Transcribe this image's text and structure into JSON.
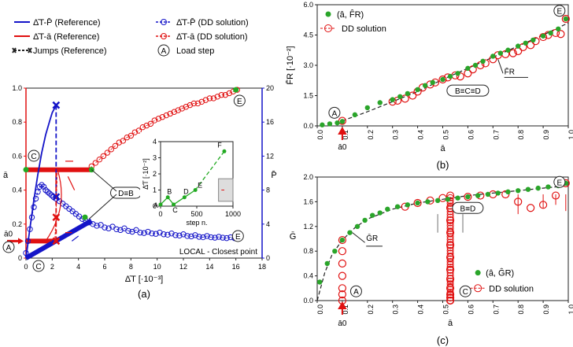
{
  "legend_a": {
    "items": [
      {
        "label": "Δ̄T-P̄ (Reference)",
        "color": "#1414c8"
      },
      {
        "label": "Δ̄T-P̄ (DD solution)",
        "color": "#1414c8"
      },
      {
        "label": "Δ̄T-ā (Reference)",
        "color": "#e01010"
      },
      {
        "label": "Δ̄T-ā (DD solution)",
        "color": "#e01010"
      },
      {
        "label": "Jumps (Reference)",
        "color": "#1414c8"
      },
      {
        "label": "Load step",
        "symbol": "A"
      }
    ]
  },
  "colors": {
    "red": "#e01010",
    "blue": "#1414c8",
    "green": "#22aa22",
    "dark_green": "#2aa52a",
    "gray": "#555555"
  },
  "chart_data": [
    {
      "id": "a",
      "type": "line",
      "panel_label": "(a)",
      "xlabel": "Δ̄T [·10⁻³]",
      "ylabel_left": "ā",
      "ylabel_right": "P̄",
      "xlim": [
        0,
        18
      ],
      "ylim_left": [
        0,
        1
      ],
      "ylim_right": [
        0,
        20
      ],
      "x_ticks": [
        "0",
        "2",
        "4",
        "6",
        "8",
        "10",
        "12",
        "14",
        "16",
        "18"
      ],
      "y_left_ticks": [
        "0",
        "0.2",
        "0.4",
        "0.6",
        "0.8",
        "1.0"
      ],
      "y_right_ticks": [
        "0",
        "4",
        "8",
        "12",
        "16",
        "20"
      ],
      "corner_text": "LOCAL - Closest point",
      "point_labels": [
        "A",
        "C",
        "C",
        "D≡B",
        "E",
        "E"
      ],
      "a0_label": "ā0",
      "series": [
        {
          "name": "Δ̄T-P̄ (Reference)",
          "axis": "right",
          "x": [
            0,
            0.3,
            0.6,
            0.9,
            1.2,
            1.5,
            1.8,
            2.0,
            2.2,
            2.3
          ],
          "y": [
            0,
            3.5,
            6.8,
            9.8,
            12.4,
            14.5,
            16.1,
            17.1,
            17.7,
            18.0
          ]
        },
        {
          "name": "Δ̄T-P̄ (DD solution)",
          "axis": "right",
          "x": [
            0,
            0.15,
            0.3,
            0.45,
            0.6,
            0.75,
            0.9,
            1.05,
            1.2,
            1.35,
            1.5,
            1.65,
            1.8,
            1.95,
            2.1,
            2.3,
            2.55,
            2.8,
            3.05,
            3.3,
            3.55,
            3.8,
            4.05,
            4.3,
            4.55,
            4.8,
            5.1,
            5.4,
            5.7,
            6.0,
            6.3,
            6.6,
            6.9,
            7.2,
            7.5,
            7.8,
            8.1,
            8.4,
            8.7,
            9.0,
            9.3,
            9.6,
            9.9,
            10.2,
            10.5,
            10.8,
            11.1,
            11.4,
            11.7,
            12.0,
            12.3,
            12.6,
            12.9,
            13.2,
            13.5,
            13.8,
            14.1,
            14.4,
            14.7,
            15.0,
            15.3,
            15.6,
            15.9,
            16.2
          ],
          "y": [
            0.6,
            2.0,
            3.4,
            4.8,
            6.0,
            7.0,
            7.8,
            8.4,
            8.6,
            8.4,
            8.0,
            7.8,
            7.6,
            7.4,
            7.2,
            7.0,
            6.7,
            6.4,
            6.1,
            5.8,
            5.5,
            5.2,
            4.9,
            4.6,
            4.4,
            4.2,
            4.0,
            3.8,
            3.9,
            3.6,
            3.5,
            3.7,
            3.4,
            3.3,
            3.5,
            3.2,
            3.1,
            3.3,
            3.0,
            2.95,
            3.1,
            2.9,
            2.85,
            3.0,
            2.8,
            2.75,
            2.9,
            2.7,
            2.65,
            2.8,
            2.6,
            2.55,
            2.7,
            2.5,
            2.45,
            2.6,
            2.45,
            2.4,
            2.5,
            2.4,
            2.35,
            2.45,
            2.35,
            2.3
          ]
        },
        {
          "name": "Δ̄T-ā (Reference)",
          "axis": "left",
          "x": [
            0,
            0,
            0,
            1.3,
            1.3,
            2.3,
            2.3,
            5.0,
            5.0
          ],
          "y": [
            0,
            1,
            0.1,
            0.1,
            0.1,
            0.1,
            0.52,
            0.52,
            0.52
          ]
        },
        {
          "name": "Δ̄T-ā (DD solution)",
          "axis": "left",
          "x": [
            0,
            0.2,
            0.4,
            0.6,
            0.8,
            1.0,
            1.2,
            1.4,
            1.6,
            1.8,
            2.0,
            2.2,
            2.4,
            2.6,
            2.8,
            3.0,
            3.2,
            3.4,
            3.6,
            3.8,
            4.0,
            4.2,
            4.4,
            4.6,
            4.8,
            5.0,
            5.3,
            5.6,
            5.9,
            6.2,
            6.5,
            6.8,
            7.1,
            7.4,
            7.7,
            8.0,
            8.3,
            8.6,
            8.9,
            9.2,
            9.5,
            9.8,
            10.1,
            10.4,
            10.7,
            11.0,
            11.3,
            11.6,
            11.9,
            12.2,
            12.5,
            12.8,
            13.1,
            13.4,
            13.7,
            14.0,
            14.3,
            14.6,
            14.9,
            15.2,
            15.5,
            15.8,
            16.1
          ],
          "y": [
            0.1,
            0.1,
            0.1,
            0.1,
            0.1,
            0.1,
            0.1,
            0.1,
            0.1,
            0.1,
            0.1,
            0.1,
            0.52,
            0.52,
            0.52,
            0.52,
            0.52,
            0.52,
            0.52,
            0.52,
            0.52,
            0.52,
            0.52,
            0.52,
            0.52,
            0.54,
            0.56,
            0.58,
            0.6,
            0.62,
            0.64,
            0.66,
            0.68,
            0.69,
            0.71,
            0.72,
            0.74,
            0.75,
            0.77,
            0.78,
            0.79,
            0.81,
            0.82,
            0.83,
            0.84,
            0.85,
            0.86,
            0.87,
            0.88,
            0.89,
            0.9,
            0.91,
            0.91,
            0.92,
            0.93,
            0.94,
            0.94,
            0.95,
            0.96,
            0.96,
            0.97,
            0.98,
            0.99
          ]
        }
      ],
      "inset": {
        "xlabel": "step n.",
        "ylabel": "Δ̄T [·10⁻²]",
        "xlim": [
          0,
          1000
        ],
        "ylim": [
          0,
          4
        ],
        "x_ticks": [
          "0",
          "500",
          "1000"
        ],
        "y_ticks": [
          "0",
          "1",
          "2",
          "3",
          "4"
        ],
        "series": [
          {
            "x": [
              0,
              100,
              180,
              330,
              480
            ],
            "y": [
              0.1,
              0.55,
              0.1,
              0.55,
              1.0
            ],
            "style": "solid"
          },
          {
            "x": [
              480,
              880
            ],
            "y": [
              1.0,
              3.4
            ],
            "style": "dashed"
          }
        ],
        "point_labels": [
          "A",
          "B",
          "C",
          "D",
          "E",
          "F"
        ]
      }
    },
    {
      "id": "b",
      "type": "scatter",
      "panel_label": "(b)",
      "xlabel": "ā",
      "ylabel": "F̄R [·10⁻²]",
      "xlim": [
        0,
        1
      ],
      "ylim": [
        0,
        6
      ],
      "x_ticks": [
        "0.0",
        "0.1",
        "0.2",
        "0.3",
        "0.4",
        "0.5",
        "0.6",
        "0.7",
        "0.8",
        "0.9",
        "1.0"
      ],
      "y_ticks": [
        "0.0",
        "1.5",
        "3.0",
        "4.5",
        "6.0"
      ],
      "a0_label": "ā0",
      "curve_label": "F̄R",
      "point_labels": [
        "A",
        "B≡C≡D",
        "E"
      ],
      "series": [
        {
          "name": "(â, F̂R)",
          "marker": "filled-circle",
          "x": [
            0.02,
            0.05,
            0.08,
            0.1,
            0.15,
            0.2,
            0.25,
            0.3,
            0.33,
            0.36,
            0.4,
            0.43,
            0.46,
            0.5,
            0.53,
            0.56,
            0.6,
            0.63,
            0.66,
            0.7,
            0.73,
            0.76,
            0.8,
            0.83,
            0.86,
            0.9,
            0.93,
            0.96,
            0.99
          ],
          "y": [
            0.05,
            0.1,
            0.15,
            0.22,
            0.55,
            0.9,
            1.15,
            1.3,
            1.45,
            1.6,
            1.8,
            2.0,
            2.15,
            2.3,
            2.45,
            2.6,
            2.85,
            3.0,
            3.2,
            3.45,
            3.6,
            3.75,
            3.95,
            4.1,
            4.25,
            4.45,
            4.6,
            4.8,
            5.3
          ]
        },
        {
          "name": "DD solution",
          "marker": "open-circle",
          "x": [
            0.1,
            0.3,
            0.32,
            0.35,
            0.38,
            0.4,
            0.42,
            0.45,
            0.47,
            0.5,
            0.52,
            0.55,
            0.57,
            0.6,
            0.62,
            0.65,
            0.67,
            0.7,
            0.72,
            0.75,
            0.78,
            0.8,
            0.82,
            0.85,
            0.87,
            0.9,
            0.92,
            0.95,
            0.97,
            0.99
          ],
          "y": [
            0.25,
            1.2,
            1.25,
            1.35,
            1.5,
            1.7,
            1.9,
            2.05,
            2.15,
            2.3,
            2.4,
            2.5,
            2.45,
            2.6,
            2.8,
            3.0,
            3.1,
            3.3,
            3.5,
            3.55,
            3.6,
            3.7,
            3.9,
            4.0,
            4.2,
            4.4,
            4.5,
            4.6,
            4.55,
            5.3
          ]
        },
        {
          "name": "F̄R",
          "marker": "dashed-line",
          "x": [
            0.1,
            0.2,
            0.3,
            0.4,
            0.5,
            0.6,
            0.7,
            0.8,
            0.9,
            1.0
          ],
          "y": [
            0.25,
            0.7,
            1.2,
            1.7,
            2.3,
            2.85,
            3.4,
            3.95,
            4.5,
            5.1
          ]
        }
      ],
      "legend": [
        "(â, F̂R)",
        "DD solution"
      ]
    },
    {
      "id": "c",
      "type": "scatter",
      "panel_label": "(c)",
      "xlabel": "ā",
      "ylabel": "Ḡ",
      "xlim": [
        0,
        1
      ],
      "ylim": [
        0,
        2
      ],
      "x_ticks": [
        "0.0",
        "0.1",
        "0.2",
        "0.3",
        "0.4",
        "0.5",
        "0.6",
        "0.7",
        "0.8",
        "0.9",
        "1.0"
      ],
      "y_ticks": [
        "0.0",
        "0.4",
        "0.8",
        "1.2",
        "1.6",
        "2.0"
      ],
      "a0_label": "ā0",
      "curve_label": "ḠR",
      "point_labels": [
        "A",
        "B≡D",
        "C",
        "E"
      ],
      "series": [
        {
          "name": "(â, ĜR)",
          "marker": "filled-circle",
          "x": [
            0.01,
            0.04,
            0.07,
            0.1,
            0.13,
            0.16,
            0.19,
            0.22,
            0.25,
            0.28,
            0.32,
            0.36,
            0.4,
            0.44,
            0.48,
            0.52,
            0.56,
            0.6,
            0.64,
            0.68,
            0.72,
            0.76,
            0.8,
            0.84,
            0.88,
            0.92,
            0.96,
            0.99
          ],
          "y": [
            0.3,
            0.6,
            0.8,
            0.98,
            1.1,
            1.2,
            1.3,
            1.38,
            1.42,
            1.48,
            1.52,
            1.55,
            1.58,
            1.6,
            1.62,
            1.64,
            1.66,
            1.68,
            1.7,
            1.72,
            1.74,
            1.76,
            1.78,
            1.8,
            1.82,
            1.84,
            1.86,
            1.9
          ]
        },
        {
          "name": "DD solution",
          "marker": "open-circle",
          "x": [
            0.1,
            0.1,
            0.1,
            0.1,
            0.1,
            0.1,
            0.1,
            0.35,
            0.4,
            0.45,
            0.5,
            0.53,
            0.53,
            0.53,
            0.53,
            0.53,
            0.53,
            0.53,
            0.53,
            0.53,
            0.53,
            0.53,
            0.53,
            0.6,
            0.65,
            0.7,
            0.75,
            0.8,
            0.85,
            0.9,
            0.95,
            0.99
          ],
          "y": [
            0.0,
            0.1,
            0.2,
            0.4,
            0.6,
            0.8,
            0.98,
            1.52,
            1.58,
            1.62,
            1.66,
            1.7,
            1.5,
            1.3,
            1.1,
            0.9,
            0.7,
            0.5,
            0.35,
            0.2,
            0.1,
            0.05,
            0.0,
            1.68,
            1.7,
            1.72,
            1.72,
            1.6,
            1.5,
            1.55,
            1.7,
            1.9
          ]
        },
        {
          "name": "ḠR",
          "marker": "dashed-line",
          "x": [
            0.0,
            0.03,
            0.06,
            0.1,
            0.15,
            0.2,
            0.3,
            0.4,
            0.5,
            0.6,
            0.7,
            0.8,
            0.9,
            1.0
          ],
          "y": [
            0.0,
            0.45,
            0.75,
            0.98,
            1.18,
            1.32,
            1.48,
            1.58,
            1.64,
            1.7,
            1.74,
            1.78,
            1.82,
            1.86
          ]
        }
      ],
      "legend": [
        "(â, ĜR)",
        "DD solution"
      ]
    }
  ]
}
